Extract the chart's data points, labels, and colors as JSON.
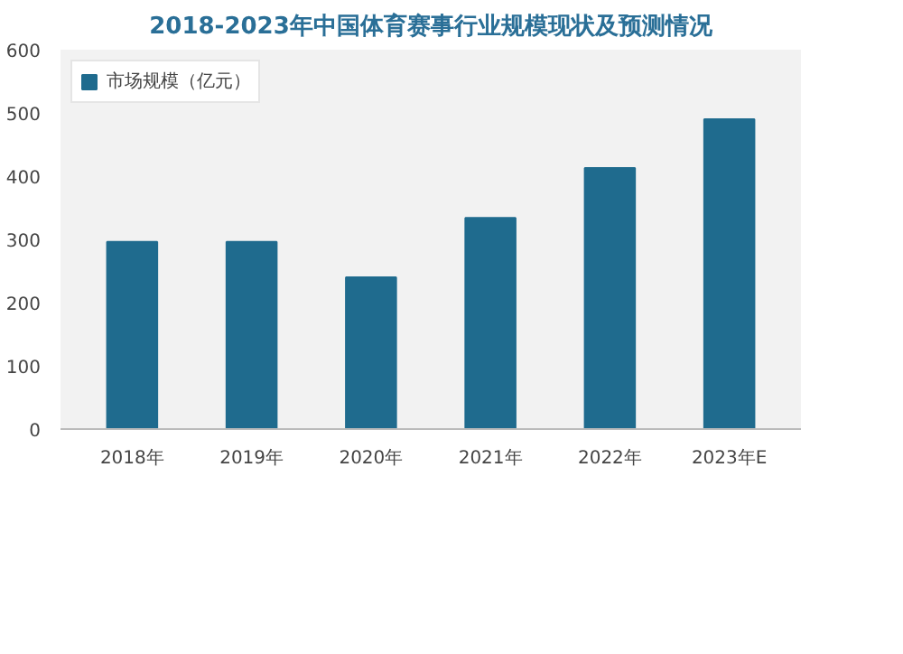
{
  "chart_data": {
    "type": "bar",
    "title": "2018-2023年中国体育赛事行业规模现状及预测情况",
    "categories": [
      "2018年",
      "2019年",
      "2020年",
      "2021年",
      "2022年",
      "2023年E"
    ],
    "series": [
      {
        "name": "市场规模（亿元）",
        "color": "#1f6b8e",
        "values": [
          296,
          296,
          240,
          334,
          413,
          490
        ]
      }
    ],
    "ylim": [
      0,
      600
    ],
    "yticks": [
      0,
      100,
      200,
      300,
      400,
      500,
      600
    ],
    "grid": false,
    "legend": "top left"
  }
}
